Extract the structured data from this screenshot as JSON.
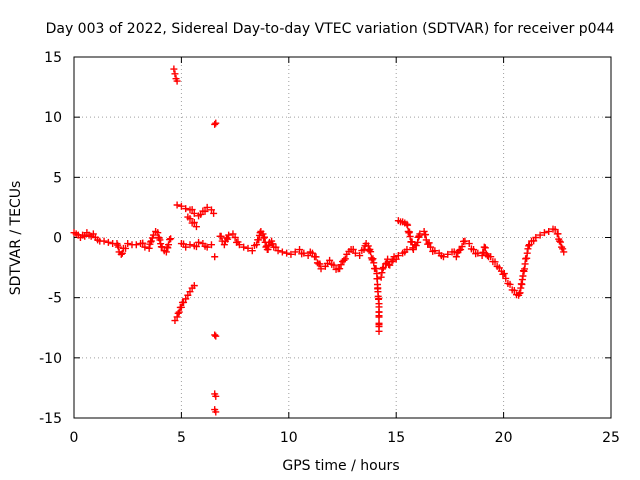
{
  "chart_data": {
    "type": "scatter",
    "title": "Day 003 of 2022, Sidereal Day-to-day VTEC variation (SDTVAR) for receiver p044",
    "xlabel": "GPS time / hours",
    "ylabel": "SDTVAR / TECUs",
    "xlim": [
      0,
      25
    ],
    "ylim": [
      -15,
      15
    ],
    "xticks": [
      0,
      5,
      10,
      15,
      20,
      25
    ],
    "yticks": [
      -15,
      -10,
      -5,
      0,
      5,
      10,
      15
    ],
    "grid": true,
    "legend": "none",
    "marker": "+",
    "color": "#ff0000",
    "series": [
      {
        "name": "SDTVAR",
        "points": [
          [
            0.0,
            0.4
          ],
          [
            0.1,
            0.3
          ],
          [
            0.2,
            0.2
          ],
          [
            0.3,
            0.0
          ],
          [
            0.4,
            0.2
          ],
          [
            0.5,
            0.1
          ],
          [
            0.6,
            0.4
          ],
          [
            0.7,
            0.2
          ],
          [
            0.8,
            0.1
          ],
          [
            0.9,
            0.3
          ],
          [
            1.0,
            0.0
          ],
          [
            1.1,
            -0.2
          ],
          [
            1.2,
            -0.3
          ],
          [
            1.4,
            -0.3
          ],
          [
            1.6,
            -0.4
          ],
          [
            1.8,
            -0.5
          ],
          [
            2.0,
            -0.5
          ],
          [
            2.1,
            -1.2
          ],
          [
            2.2,
            -1.4
          ],
          [
            2.3,
            -0.9
          ],
          [
            2.5,
            -0.5
          ],
          [
            2.7,
            -0.6
          ],
          [
            2.9,
            -0.6
          ],
          [
            3.1,
            -0.5
          ],
          [
            3.3,
            -0.8
          ],
          [
            3.5,
            -0.9
          ],
          [
            3.6,
            -0.3
          ],
          [
            3.7,
            0.2
          ],
          [
            3.8,
            0.5
          ],
          [
            3.9,
            0.4
          ],
          [
            4.0,
            -0.2
          ],
          [
            4.1,
            -0.8
          ],
          [
            4.2,
            -1.1
          ],
          [
            4.3,
            -1.2
          ],
          [
            4.4,
            -0.6
          ],
          [
            4.5,
            -0.1
          ],
          [
            4.65,
            14.0
          ],
          [
            4.7,
            13.6
          ],
          [
            4.75,
            13.2
          ],
          [
            4.8,
            13.0
          ],
          [
            4.7,
            -6.9
          ],
          [
            4.8,
            -6.6
          ],
          [
            4.9,
            -6.2
          ],
          [
            5.0,
            -5.8
          ],
          [
            5.1,
            -5.4
          ],
          [
            5.2,
            -5.1
          ],
          [
            5.3,
            -4.8
          ],
          [
            5.4,
            -4.5
          ],
          [
            5.5,
            -4.2
          ],
          [
            5.6,
            -4.0
          ],
          [
            4.8,
            2.7
          ],
          [
            5.0,
            2.6
          ],
          [
            5.2,
            2.4
          ],
          [
            5.4,
            2.3
          ],
          [
            5.6,
            2.0
          ],
          [
            5.8,
            1.8
          ],
          [
            6.0,
            2.2
          ],
          [
            6.2,
            2.5
          ],
          [
            6.4,
            2.3
          ],
          [
            6.5,
            2.0
          ],
          [
            5.3,
            1.7
          ],
          [
            5.5,
            1.2
          ],
          [
            5.7,
            0.9
          ],
          [
            5.0,
            -0.5
          ],
          [
            5.2,
            -0.8
          ],
          [
            5.4,
            -0.6
          ],
          [
            5.6,
            -0.7
          ],
          [
            5.8,
            -0.4
          ],
          [
            6.0,
            -0.5
          ],
          [
            6.2,
            -0.8
          ],
          [
            6.4,
            -0.6
          ],
          [
            6.55,
            9.4
          ],
          [
            6.6,
            9.5
          ],
          [
            6.55,
            -1.6
          ],
          [
            6.55,
            -8.1
          ],
          [
            6.6,
            -8.2
          ],
          [
            6.55,
            -13.0
          ],
          [
            6.6,
            -13.2
          ],
          [
            6.55,
            -14.3
          ],
          [
            6.6,
            -14.5
          ],
          [
            6.8,
            0.1
          ],
          [
            6.9,
            -0.3
          ],
          [
            7.0,
            -0.6
          ],
          [
            7.2,
            0.2
          ],
          [
            7.4,
            0.3
          ],
          [
            7.5,
            0.0
          ],
          [
            7.7,
            -0.6
          ],
          [
            7.9,
            -0.8
          ],
          [
            8.1,
            -0.9
          ],
          [
            8.3,
            -1.1
          ],
          [
            8.5,
            -0.6
          ],
          [
            8.6,
            -0.2
          ],
          [
            8.7,
            0.5
          ],
          [
            8.8,
            0.3
          ],
          [
            8.9,
            -0.4
          ],
          [
            9.0,
            -1.0
          ],
          [
            9.1,
            -0.4
          ],
          [
            9.2,
            -0.3
          ],
          [
            9.3,
            -0.8
          ],
          [
            9.5,
            -1.1
          ],
          [
            9.7,
            -1.2
          ],
          [
            9.9,
            -1.3
          ],
          [
            10.1,
            -1.4
          ],
          [
            10.3,
            -1.2
          ],
          [
            10.5,
            -1.0
          ],
          [
            10.7,
            -1.3
          ],
          [
            10.9,
            -1.5
          ],
          [
            11.0,
            -1.2
          ],
          [
            11.2,
            -1.6
          ],
          [
            11.4,
            -2.2
          ],
          [
            11.5,
            -2.6
          ],
          [
            11.7,
            -2.4
          ],
          [
            11.9,
            -1.9
          ],
          [
            12.1,
            -2.3
          ],
          [
            12.3,
            -2.6
          ],
          [
            12.5,
            -2.0
          ],
          [
            12.7,
            -1.4
          ],
          [
            12.9,
            -1.0
          ],
          [
            13.1,
            -1.3
          ],
          [
            13.3,
            -1.5
          ],
          [
            13.5,
            -1.0
          ],
          [
            13.6,
            -0.5
          ],
          [
            13.7,
            -0.7
          ],
          [
            14.1,
            -3.0
          ],
          [
            14.15,
            -4.5
          ],
          [
            14.2,
            -5.5
          ],
          [
            14.2,
            -6.5
          ],
          [
            14.2,
            -7.4
          ],
          [
            14.2,
            -7.8
          ],
          [
            14.3,
            -3.3
          ],
          [
            14.4,
            -2.5
          ],
          [
            14.5,
            -2.2
          ],
          [
            14.6,
            -1.8
          ],
          [
            14.7,
            -2.3
          ],
          [
            14.8,
            -2.0
          ],
          [
            14.9,
            -1.6
          ],
          [
            15.0,
            -1.8
          ],
          [
            15.1,
            -1.5
          ],
          [
            15.3,
            -1.3
          ],
          [
            15.4,
            -1.2
          ],
          [
            15.5,
            -1.0
          ],
          [
            15.1,
            1.4
          ],
          [
            15.2,
            1.3
          ],
          [
            15.3,
            1.3
          ],
          [
            15.4,
            1.2
          ],
          [
            15.5,
            1.1
          ],
          [
            15.8,
            -1.0
          ],
          [
            16.0,
            -0.4
          ],
          [
            16.1,
            0.3
          ],
          [
            16.3,
            0.5
          ],
          [
            16.4,
            -0.2
          ],
          [
            16.6,
            -0.8
          ],
          [
            16.8,
            -1.1
          ],
          [
            17.0,
            -1.3
          ],
          [
            17.2,
            -1.6
          ],
          [
            17.4,
            -1.4
          ],
          [
            17.6,
            -1.2
          ],
          [
            17.8,
            -1.6
          ],
          [
            18.0,
            -1.0
          ],
          [
            18.2,
            -0.3
          ],
          [
            18.4,
            -0.5
          ],
          [
            18.6,
            -1.0
          ],
          [
            18.8,
            -1.3
          ],
          [
            19.0,
            -1.5
          ],
          [
            19.1,
            -0.8
          ],
          [
            19.3,
            -1.6
          ],
          [
            19.5,
            -2.0
          ],
          [
            19.7,
            -2.4
          ],
          [
            19.9,
            -2.8
          ],
          [
            20.1,
            -3.4
          ],
          [
            20.3,
            -3.9
          ],
          [
            20.5,
            -4.4
          ],
          [
            20.7,
            -4.8
          ],
          [
            20.8,
            -4.2
          ],
          [
            20.9,
            -3.2
          ],
          [
            21.0,
            -2.2
          ],
          [
            21.1,
            -1.3
          ],
          [
            21.2,
            -0.6
          ],
          [
            21.3,
            -0.3
          ],
          [
            21.5,
            0.0
          ],
          [
            21.7,
            0.2
          ],
          [
            21.9,
            0.4
          ],
          [
            22.1,
            0.5
          ],
          [
            22.3,
            0.7
          ],
          [
            22.5,
            0.3
          ],
          [
            22.6,
            -0.3
          ],
          [
            22.7,
            -0.8
          ],
          [
            22.8,
            -1.2
          ]
        ]
      }
    ]
  }
}
